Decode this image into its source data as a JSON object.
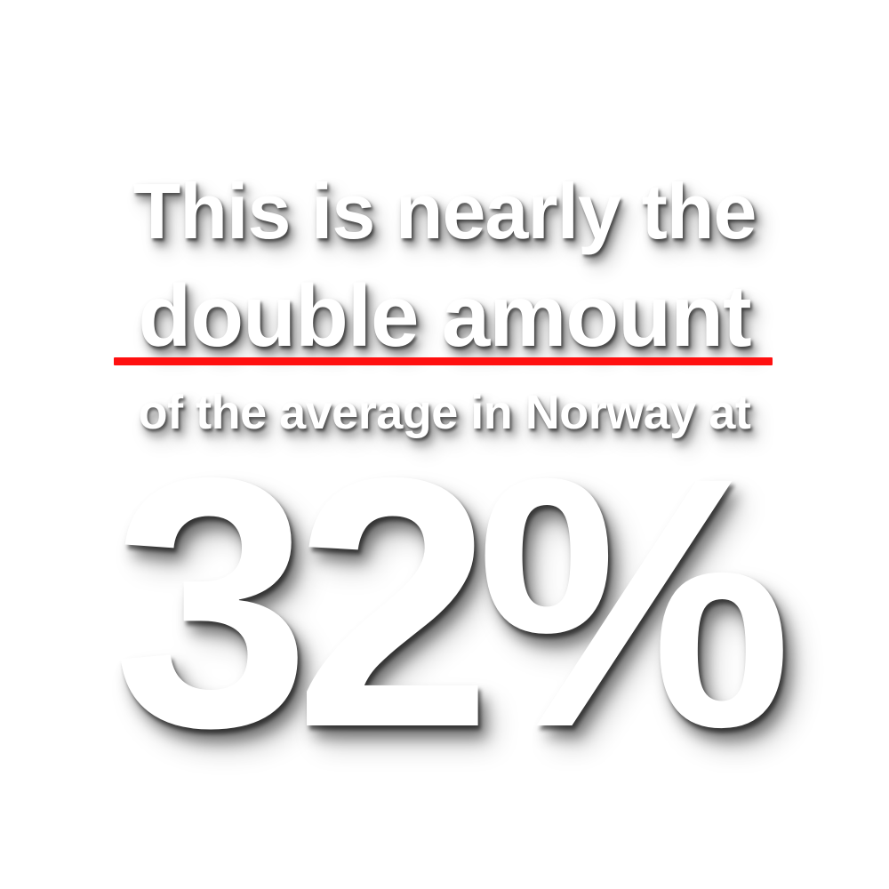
{
  "headline": {
    "line1": "This is nearly the",
    "line2": "double amount",
    "line3": "of the average in Norway at",
    "stat": "32%"
  },
  "colors": {
    "background": "#ffffff",
    "text": "#ffffff",
    "underline": "#ff1010"
  }
}
